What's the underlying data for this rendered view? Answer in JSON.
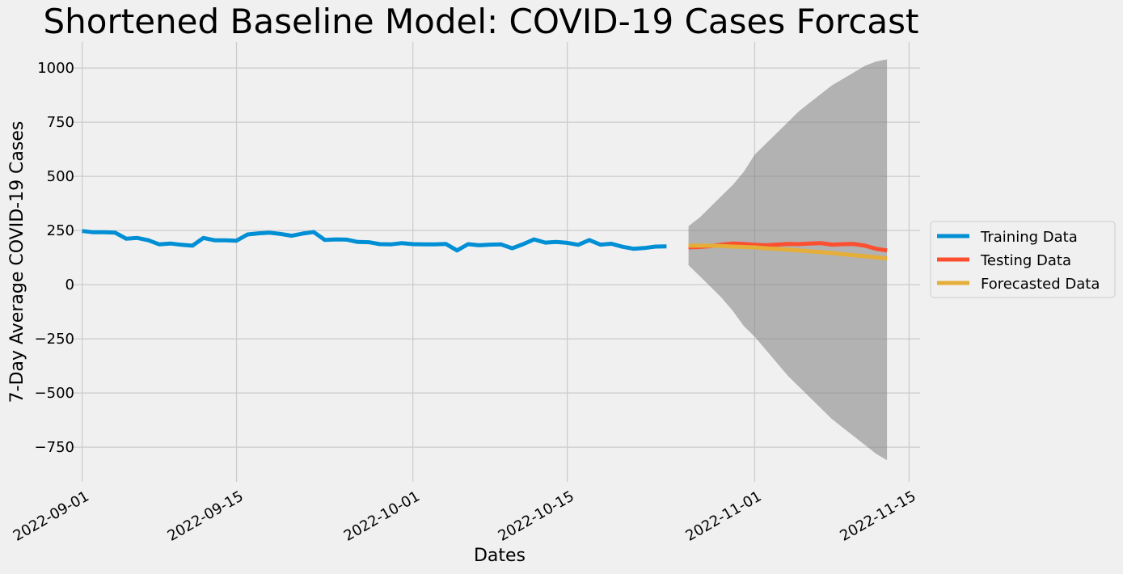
{
  "chart_data": {
    "type": "line",
    "title": "Shortened Baseline Model: COVID-19 Cases Forcast",
    "xlabel": "Dates",
    "ylabel": "7-Day Average COVID-19 Cases",
    "x_ticks": [
      "2022-09-01",
      "2022-09-15",
      "2022-10-01",
      "2022-10-15",
      "2022-11-01",
      "2022-11-15"
    ],
    "y_ticks": [
      -750,
      -500,
      -250,
      0,
      250,
      500,
      750,
      1000
    ],
    "xlim": [
      "2022-08-31",
      "2022-11-16"
    ],
    "ylim": [
      -910,
      1120
    ],
    "grid": true,
    "legend_position": "right",
    "series": [
      {
        "name": "Training Data",
        "color": "#008fd5",
        "x": [
          "2022-09-01",
          "2022-09-02",
          "2022-09-03",
          "2022-09-04",
          "2022-09-05",
          "2022-09-06",
          "2022-09-07",
          "2022-09-08",
          "2022-09-09",
          "2022-09-10",
          "2022-09-11",
          "2022-09-12",
          "2022-09-13",
          "2022-09-14",
          "2022-09-15",
          "2022-09-16",
          "2022-09-17",
          "2022-09-18",
          "2022-09-19",
          "2022-09-20",
          "2022-09-21",
          "2022-09-22",
          "2022-09-23",
          "2022-09-24",
          "2022-09-25",
          "2022-09-26",
          "2022-09-27",
          "2022-09-28",
          "2022-09-29",
          "2022-09-30",
          "2022-10-01",
          "2022-10-02",
          "2022-10-03",
          "2022-10-04",
          "2022-10-05",
          "2022-10-06",
          "2022-10-07",
          "2022-10-08",
          "2022-10-09",
          "2022-10-10",
          "2022-10-11",
          "2022-10-12",
          "2022-10-13",
          "2022-10-14",
          "2022-10-15",
          "2022-10-16",
          "2022-10-17",
          "2022-10-18",
          "2022-10-19",
          "2022-10-20",
          "2022-10-21",
          "2022-10-22",
          "2022-10-23",
          "2022-10-24",
          "2022-10-25"
        ],
        "values": [
          248,
          242,
          242,
          240,
          212,
          216,
          205,
          186,
          190,
          184,
          180,
          216,
          205,
          205,
          203,
          232,
          237,
          240,
          234,
          226,
          236,
          243,
          207,
          209,
          208,
          197,
          196,
          187,
          186,
          192,
          187,
          186,
          186,
          188,
          158,
          187,
          182,
          185,
          186,
          168,
          187,
          209,
          194,
          197,
          193,
          184,
          206,
          185,
          189,
          175,
          166,
          169,
          176,
          177,
          null
        ]
      },
      {
        "name": "Testing Data",
        "color": "#fc4f30",
        "x": [
          "2022-10-26",
          "2022-10-27",
          "2022-10-28",
          "2022-10-29",
          "2022-10-30",
          "2022-10-31",
          "2022-11-01",
          "2022-11-02",
          "2022-11-03",
          "2022-11-04",
          "2022-11-05",
          "2022-11-06",
          "2022-11-07",
          "2022-11-08",
          "2022-11-09",
          "2022-11-10",
          "2022-11-11",
          "2022-11-12",
          "2022-11-13"
        ],
        "values": [
          172,
          174,
          178,
          185,
          190,
          188,
          184,
          182,
          185,
          188,
          187,
          190,
          192,
          185,
          187,
          188,
          180,
          166,
          158
        ]
      },
      {
        "name": "Forecasted Data",
        "color": "#e5ae38",
        "x": [
          "2022-10-26",
          "2022-10-27",
          "2022-10-28",
          "2022-10-29",
          "2022-10-30",
          "2022-10-31",
          "2022-11-01",
          "2022-11-02",
          "2022-11-03",
          "2022-11-04",
          "2022-11-05",
          "2022-11-06",
          "2022-11-07",
          "2022-11-08",
          "2022-11-09",
          "2022-11-10",
          "2022-11-11",
          "2022-11-12",
          "2022-11-13"
        ],
        "values": [
          180,
          180,
          180,
          178,
          176,
          174,
          172,
          168,
          165,
          162,
          158,
          154,
          150,
          146,
          141,
          136,
          131,
          126,
          121
        ]
      }
    ],
    "confidence_band": {
      "color": "#808080",
      "x": [
        "2022-10-26",
        "2022-10-27",
        "2022-10-28",
        "2022-10-29",
        "2022-10-30",
        "2022-10-31",
        "2022-11-01",
        "2022-11-02",
        "2022-11-03",
        "2022-11-04",
        "2022-11-05",
        "2022-11-06",
        "2022-11-07",
        "2022-11-08",
        "2022-11-09",
        "2022-11-10",
        "2022-11-11",
        "2022-11-12",
        "2022-11-13"
      ],
      "upper": [
        270,
        310,
        360,
        410,
        460,
        520,
        600,
        650,
        700,
        750,
        800,
        840,
        880,
        920,
        950,
        980,
        1010,
        1030,
        1040
      ],
      "lower": [
        90,
        40,
        -10,
        -60,
        -120,
        -190,
        -240,
        -300,
        -360,
        -420,
        -470,
        -520,
        -570,
        -620,
        -660,
        -700,
        -740,
        -780,
        -810
      ]
    }
  }
}
